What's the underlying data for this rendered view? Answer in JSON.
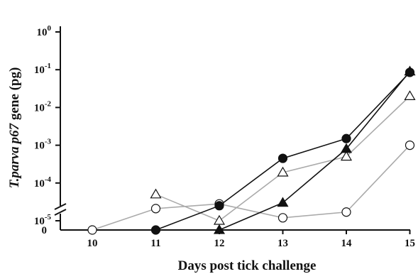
{
  "chart_data": {
    "type": "line",
    "title": "",
    "xlabel": "Days post tick challenge",
    "ylabel_parts": {
      "organism": "T.parva",
      "gene": "p67",
      "rest": " gene (pg)"
    },
    "y_scale": "log (broken axis with zero baseline)",
    "x_ticks": [
      "10",
      "11",
      "12",
      "13",
      "14",
      "15"
    ],
    "y_ticks": [
      {
        "base": "10",
        "exp": "-5",
        "value": 1e-05
      },
      {
        "base": "10",
        "exp": "-4",
        "value": 0.0001
      },
      {
        "base": "10",
        "exp": "-3",
        "value": 0.001
      },
      {
        "base": "10",
        "exp": "-2",
        "value": 0.01
      },
      {
        "base": "10",
        "exp": "-1",
        "value": 0.1
      },
      {
        "base": "10",
        "exp": "0",
        "value": 1
      }
    ],
    "y_zero_label": "0",
    "ylim": [
      0,
      1
    ],
    "xlim": [
      10,
      15
    ],
    "grid": false,
    "legend": "none",
    "series": [
      {
        "marker": "filled-circle",
        "line_color": "#111111",
        "marker_fill": "#111111",
        "points": [
          [
            11,
            0
          ],
          [
            12,
            2.5e-05
          ],
          [
            13,
            0.00045
          ],
          [
            14,
            0.0015
          ],
          [
            15,
            0.085
          ]
        ]
      },
      {
        "marker": "filled-triangle",
        "line_color": "#111111",
        "marker_fill": "#111111",
        "points": [
          [
            12,
            0
          ],
          [
            13,
            3e-05
          ],
          [
            14,
            0.0008
          ],
          [
            15,
            0.09
          ]
        ]
      },
      {
        "marker": "open-triangle",
        "line_color": "#aaaaaa",
        "marker_fill": "#ffffff",
        "points": [
          [
            11,
            5e-05
          ],
          [
            12,
            1e-05
          ],
          [
            13,
            0.00019
          ],
          [
            14,
            0.0005
          ],
          [
            15,
            0.02
          ]
        ]
      },
      {
        "marker": "open-circle",
        "line_color": "#aaaaaa",
        "marker_fill": "#ffffff",
        "points": [
          [
            10,
            0
          ],
          [
            11,
            2.1e-05
          ],
          [
            12,
            2.8e-05
          ],
          [
            13,
            1.2e-05
          ],
          [
            14,
            1.7e-05
          ],
          [
            15,
            0.001
          ]
        ]
      }
    ]
  }
}
